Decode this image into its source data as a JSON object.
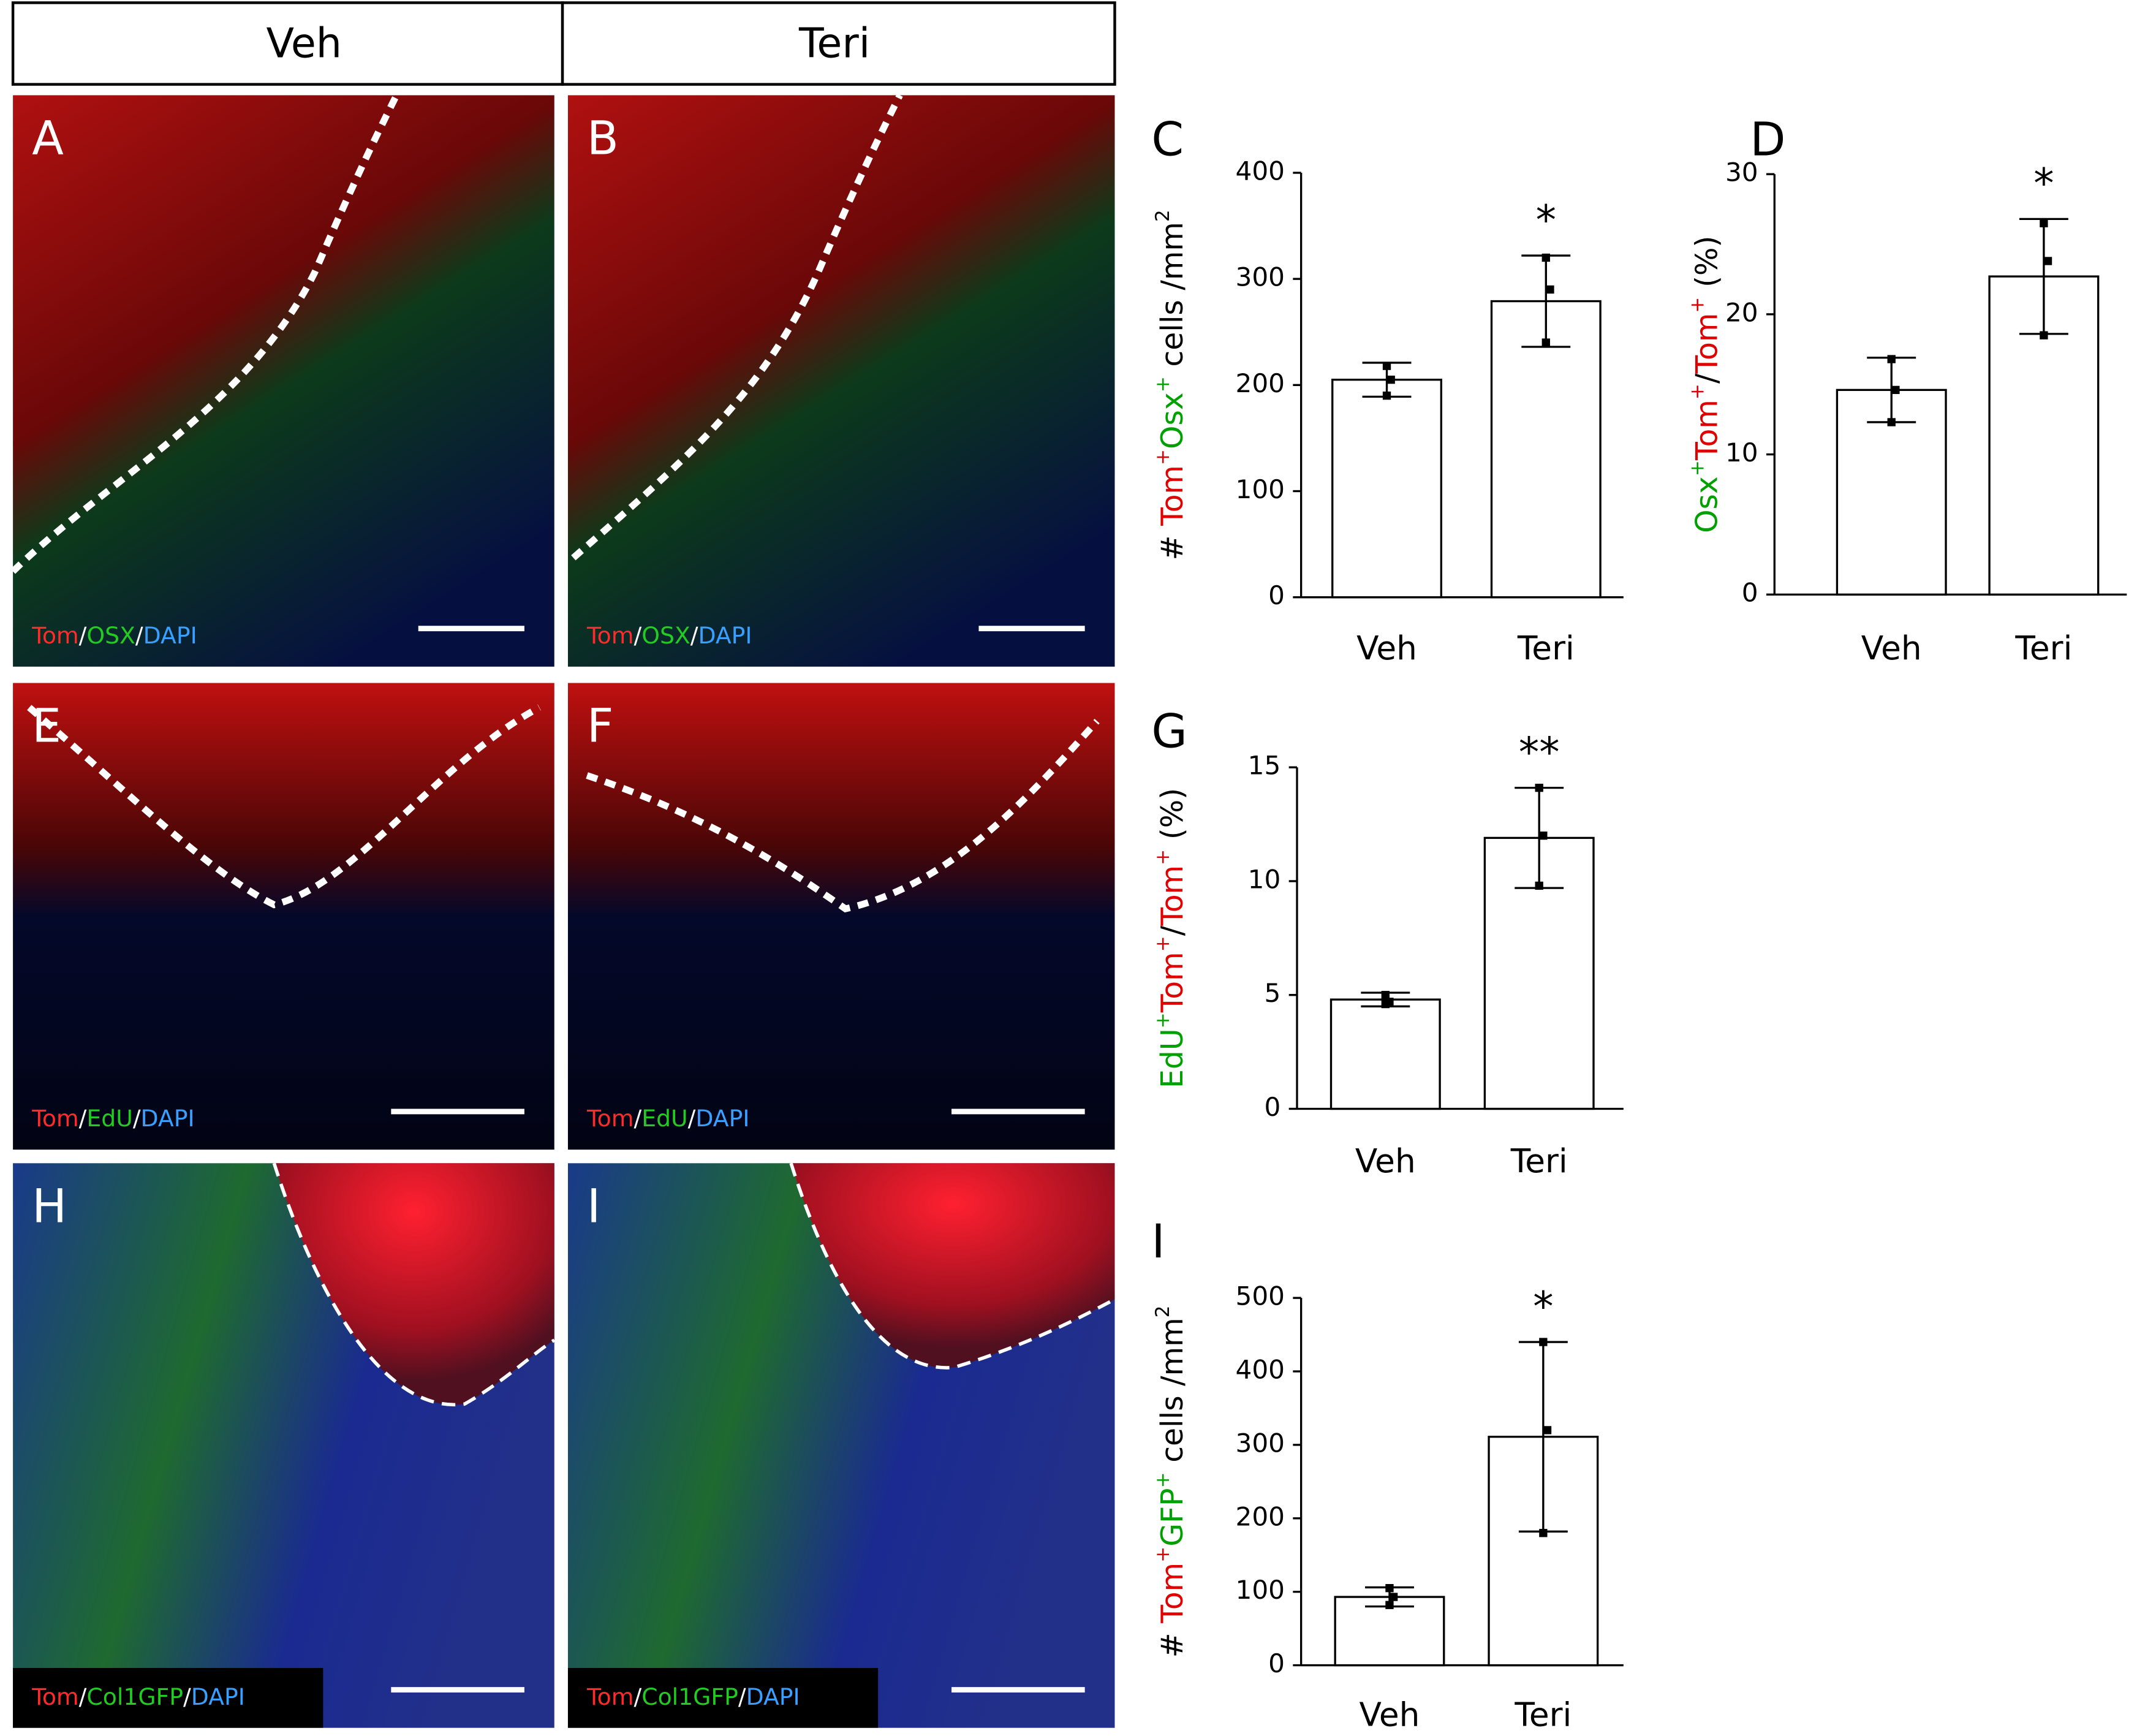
{
  "figure": {
    "headers": [
      "Veh",
      "Teri"
    ],
    "micrographs": [
      {
        "panel": "A",
        "stain": [
          {
            "text": "Tom",
            "color": "#ff2a2a"
          },
          {
            "text": "/",
            "color": "#ffffff"
          },
          {
            "text": "OSX",
            "color": "#22cc22"
          },
          {
            "text": "/",
            "color": "#ffffff"
          },
          {
            "text": "DAPI",
            "color": "#3aa0ff"
          }
        ]
      },
      {
        "panel": "B",
        "stain": [
          {
            "text": "Tom",
            "color": "#ff2a2a"
          },
          {
            "text": "/",
            "color": "#ffffff"
          },
          {
            "text": "OSX",
            "color": "#22cc22"
          },
          {
            "text": "/",
            "color": "#ffffff"
          },
          {
            "text": "DAPI",
            "color": "#3aa0ff"
          }
        ]
      },
      {
        "panel": "E",
        "stain": [
          {
            "text": "Tom",
            "color": "#ff2a2a"
          },
          {
            "text": "/",
            "color": "#ffffff"
          },
          {
            "text": "EdU",
            "color": "#22cc22"
          },
          {
            "text": "/",
            "color": "#ffffff"
          },
          {
            "text": "DAPI",
            "color": "#3aa0ff"
          }
        ]
      },
      {
        "panel": "F",
        "stain": [
          {
            "text": "Tom",
            "color": "#ff2a2a"
          },
          {
            "text": "/",
            "color": "#ffffff"
          },
          {
            "text": "EdU",
            "color": "#22cc22"
          },
          {
            "text": "/",
            "color": "#ffffff"
          },
          {
            "text": "DAPI",
            "color": "#3aa0ff"
          }
        ]
      },
      {
        "panel": "H",
        "stain": [
          {
            "text": "Tom",
            "color": "#ff2a2a"
          },
          {
            "text": "/",
            "color": "#ffffff"
          },
          {
            "text": "Col1GFP",
            "color": "#22cc22"
          },
          {
            "text": "/",
            "color": "#ffffff"
          },
          {
            "text": "DAPI",
            "color": "#3aa0ff"
          }
        ]
      },
      {
        "panel": "I",
        "stain": [
          {
            "text": "Tom",
            "color": "#ff2a2a"
          },
          {
            "text": "/",
            "color": "#ffffff"
          },
          {
            "text": "Col1GFP",
            "color": "#22cc22"
          },
          {
            "text": "/",
            "color": "#ffffff"
          },
          {
            "text": "DAPI",
            "color": "#3aa0ff"
          }
        ]
      }
    ]
  },
  "chart_data": [
    {
      "type": "bar",
      "panel": "C",
      "y_label": [
        {
          "text": "# ",
          "color": "#000000"
        },
        {
          "text": "Tom",
          "color": "#e00000"
        },
        {
          "text": "+",
          "color": "#e00000",
          "sup": true
        },
        {
          "text": "Osx",
          "color": "#00a000"
        },
        {
          "text": "+",
          "color": "#00a000",
          "sup": true
        },
        {
          "text": " cells /mm",
          "color": "#000000"
        },
        {
          "text": "2",
          "color": "#000000",
          "sup": true
        }
      ],
      "categories": [
        "Veh",
        "Teri"
      ],
      "values": [
        205,
        279
      ],
      "errors": [
        16,
        43
      ],
      "points": [
        [
          218,
          205,
          190
        ],
        [
          320,
          290,
          240
        ]
      ],
      "annotation": "*",
      "color": "#ffffff",
      "ylim": [
        0,
        400
      ],
      "yticks": [
        0,
        100,
        200,
        300,
        400
      ]
    },
    {
      "type": "bar",
      "panel": "D",
      "y_label": [
        {
          "text": "Osx",
          "color": "#00a000"
        },
        {
          "text": "+",
          "color": "#00a000",
          "sup": true
        },
        {
          "text": "Tom",
          "color": "#e00000"
        },
        {
          "text": "+",
          "color": "#e00000",
          "sup": true
        },
        {
          "text": "/",
          "color": "#000000"
        },
        {
          "text": "Tom",
          "color": "#e00000"
        },
        {
          "text": "+",
          "color": "#e00000",
          "sup": true
        },
        {
          "text": " (%)",
          "color": "#000000"
        }
      ],
      "categories": [
        "Veh",
        "Teri"
      ],
      "values": [
        14.6,
        22.7
      ],
      "errors": [
        2.3,
        4.1
      ],
      "points": [
        [
          16.8,
          14.6,
          12.3
        ],
        [
          26.5,
          23.8,
          18.5
        ]
      ],
      "annotation": "*",
      "color": "#ffffff",
      "ylim": [
        0,
        30
      ],
      "yticks": [
        0,
        10,
        20,
        30
      ]
    },
    {
      "type": "bar",
      "panel": "G",
      "y_label": [
        {
          "text": "EdU",
          "color": "#00a000"
        },
        {
          "text": "+",
          "color": "#00a000",
          "sup": true
        },
        {
          "text": "Tom",
          "color": "#e00000"
        },
        {
          "text": "+",
          "color": "#e00000",
          "sup": true
        },
        {
          "text": "/",
          "color": "#000000"
        },
        {
          "text": "Tom",
          "color": "#e00000"
        },
        {
          "text": "+",
          "color": "#e00000",
          "sup": true
        },
        {
          "text": " (%)",
          "color": "#000000"
        }
      ],
      "categories": [
        "Veh",
        "Teri"
      ],
      "values": [
        4.8,
        11.9
      ],
      "errors": [
        0.3,
        2.2
      ],
      "points": [
        [
          5.0,
          4.7,
          4.6
        ],
        [
          14.1,
          12.0,
          9.8
        ]
      ],
      "annotation": "**",
      "color": "#ffffff",
      "ylim": [
        0,
        15
      ],
      "yticks": [
        0,
        5,
        10,
        15
      ]
    },
    {
      "type": "bar",
      "panel": "I",
      "y_label": [
        {
          "text": "# ",
          "color": "#000000"
        },
        {
          "text": "Tom",
          "color": "#e00000"
        },
        {
          "text": "+",
          "color": "#e00000",
          "sup": true
        },
        {
          "text": "GFP",
          "color": "#00a000"
        },
        {
          "text": "+",
          "color": "#00a000",
          "sup": true
        },
        {
          "text": " cells /mm",
          "color": "#000000"
        },
        {
          "text": "2",
          "color": "#000000",
          "sup": true
        }
      ],
      "categories": [
        "Veh",
        "Teri"
      ],
      "values": [
        93,
        311
      ],
      "errors": [
        13,
        129
      ],
      "points": [
        [
          105,
          93,
          82
        ],
        [
          440,
          320,
          180
        ]
      ],
      "annotation": "*",
      "color": "#ffffff",
      "ylim": [
        0,
        500
      ],
      "yticks": [
        0,
        100,
        200,
        300,
        400,
        500
      ]
    }
  ]
}
